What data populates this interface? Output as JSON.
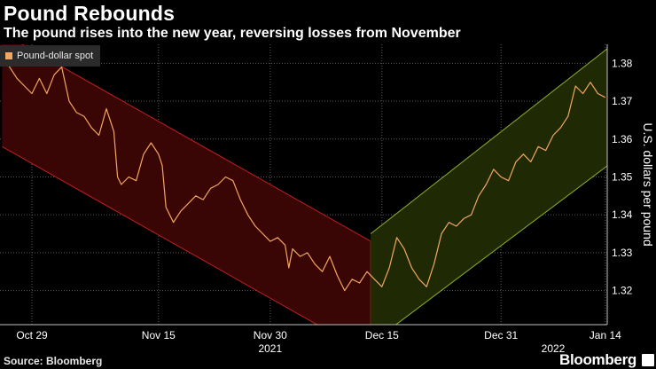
{
  "header": {
    "title": "Pound Rebounds",
    "subtitle": "The pound rises into the new year, reversing losses from November"
  },
  "footer": {
    "source": "Source: Bloomberg",
    "brand": "Bloomberg"
  },
  "colors": {
    "line": "#f2a760",
    "down_channel_fill": "#3a0505",
    "down_channel_stroke": "#c01e1e",
    "up_channel_fill": "#1f2a05",
    "up_channel_stroke": "#8fb02a"
  },
  "chart_data": {
    "type": "line",
    "title": "Pound Rebounds",
    "subtitle": "The pound rises into the new year, reversing losses from November",
    "legend": [
      "Pound-dollar spot"
    ],
    "legend_position": "top-left",
    "ylabel": "U.S. dollars per pound",
    "xlabel": "",
    "ylim": [
      1.311,
      1.385
    ],
    "yticks": [
      1.32,
      1.33,
      1.34,
      1.35,
      1.36,
      1.37,
      1.38
    ],
    "ytick_labels": [
      "1.32",
      "1.33",
      "1.34",
      "1.35",
      "1.36",
      "1.37",
      "1.38"
    ],
    "xrange_days": [
      0,
      78
    ],
    "xticks": [
      {
        "day": 0,
        "label": "Oct 29"
      },
      {
        "day": 17,
        "label": "Nov 15"
      },
      {
        "day": 32,
        "label": "Nov 30"
      },
      {
        "day": 47,
        "label": "Dec 15"
      },
      {
        "day": 63,
        "label": "Dec 31"
      },
      {
        "day": 77,
        "label": "Jan 14"
      }
    ],
    "year_labels": [
      {
        "day": 32,
        "label": "2021"
      },
      {
        "day": 70,
        "label": "2022"
      }
    ],
    "grid": true,
    "series": [
      {
        "name": "Pound-dollar spot",
        "points": [
          [
            -4,
            1.381
          ],
          [
            -3,
            1.379
          ],
          [
            -2,
            1.376
          ],
          [
            -1,
            1.374
          ],
          [
            0,
            1.372
          ],
          [
            1,
            1.376
          ],
          [
            2,
            1.372
          ],
          [
            3,
            1.377
          ],
          [
            4,
            1.379
          ],
          [
            5,
            1.37
          ],
          [
            6,
            1.367
          ],
          [
            7,
            1.366
          ],
          [
            8,
            1.363
          ],
          [
            9,
            1.361
          ],
          [
            10,
            1.368
          ],
          [
            11,
            1.362
          ],
          [
            11.5,
            1.35
          ],
          [
            12,
            1.348
          ],
          [
            13,
            1.35
          ],
          [
            14,
            1.349
          ],
          [
            15,
            1.356
          ],
          [
            16,
            1.359
          ],
          [
            17,
            1.356
          ],
          [
            17.5,
            1.353
          ],
          [
            18,
            1.342
          ],
          [
            19,
            1.338
          ],
          [
            20,
            1.341
          ],
          [
            21,
            1.343
          ],
          [
            22,
            1.345
          ],
          [
            23,
            1.344
          ],
          [
            24,
            1.347
          ],
          [
            25,
            1.348
          ],
          [
            26,
            1.35
          ],
          [
            27,
            1.349
          ],
          [
            28,
            1.344
          ],
          [
            29,
            1.34
          ],
          [
            30,
            1.337
          ],
          [
            31,
            1.335
          ],
          [
            32,
            1.333
          ],
          [
            33,
            1.334
          ],
          [
            34,
            1.332
          ],
          [
            34.5,
            1.326
          ],
          [
            35,
            1.331
          ],
          [
            36,
            1.329
          ],
          [
            37,
            1.33
          ],
          [
            38,
            1.327
          ],
          [
            39,
            1.325
          ],
          [
            40,
            1.329
          ],
          [
            41,
            1.324
          ],
          [
            42,
            1.32
          ],
          [
            43,
            1.323
          ],
          [
            44,
            1.322
          ],
          [
            45,
            1.325
          ],
          [
            46,
            1.323
          ],
          [
            47,
            1.321
          ],
          [
            48,
            1.326
          ],
          [
            49,
            1.334
          ],
          [
            50,
            1.331
          ],
          [
            51,
            1.326
          ],
          [
            52,
            1.323
          ],
          [
            53,
            1.321
          ],
          [
            54,
            1.327
          ],
          [
            55,
            1.335
          ],
          [
            56,
            1.338
          ],
          [
            57,
            1.337
          ],
          [
            58,
            1.339
          ],
          [
            59,
            1.34
          ],
          [
            60,
            1.345
          ],
          [
            61,
            1.348
          ],
          [
            62,
            1.352
          ],
          [
            63,
            1.35
          ],
          [
            64,
            1.349
          ],
          [
            65,
            1.354
          ],
          [
            66,
            1.356
          ],
          [
            67,
            1.354
          ],
          [
            68,
            1.358
          ],
          [
            69,
            1.357
          ],
          [
            70,
            1.361
          ],
          [
            71,
            1.363
          ],
          [
            72,
            1.366
          ],
          [
            73,
            1.374
          ],
          [
            74,
            1.372
          ],
          [
            75,
            1.375
          ],
          [
            76,
            1.372
          ],
          [
            77,
            1.371
          ]
        ]
      }
    ],
    "channels": [
      {
        "name": "downtrend-channel",
        "start_day": -4,
        "end_day": 45.5,
        "upper": [
          1.388,
          1.333
        ],
        "lower": [
          1.358,
          1.303
        ]
      },
      {
        "name": "uptrend-channel",
        "start_day": 45.5,
        "end_day": 78,
        "upper": [
          1.335,
          1.385
        ],
        "lower": [
          1.306,
          1.354
        ]
      }
    ]
  }
}
